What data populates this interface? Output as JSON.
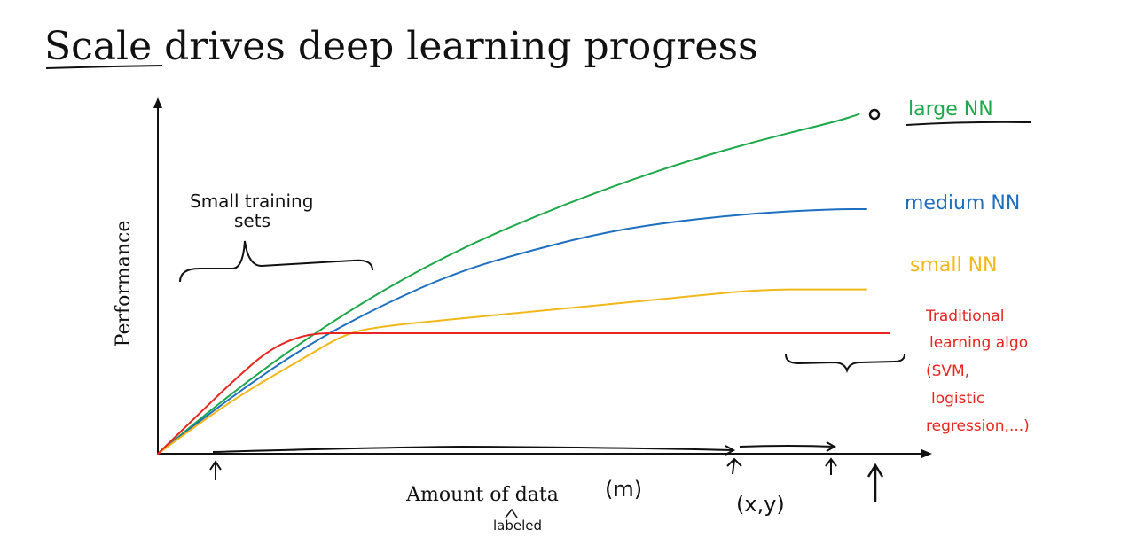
{
  "slide": {
    "title_underlined": "Scale",
    "title_rest": " drives deep learning progress"
  },
  "colors": {
    "large": "#1ea84a",
    "medium": "#1f6fc0",
    "small": "#f2b718",
    "traditional": "#e8251f",
    "ink": "#111111"
  },
  "chart_data": {
    "type": "line",
    "xlabel": "Amount of data",
    "ylabel": "Performance",
    "series": [
      {
        "name": "large NN",
        "color_key": "large",
        "x": [
          0,
          0.1,
          0.2,
          0.3,
          0.4,
          0.5,
          0.6,
          0.7,
          0.8,
          0.9,
          0.93
        ],
        "y": [
          0,
          0.17,
          0.32,
          0.45,
          0.56,
          0.65,
          0.73,
          0.8,
          0.86,
          0.91,
          0.93
        ]
      },
      {
        "name": "medium NN",
        "color_key": "medium",
        "x": [
          0,
          0.1,
          0.2,
          0.3,
          0.4,
          0.5,
          0.6,
          0.7,
          0.8,
          0.9,
          0.94
        ],
        "y": [
          0,
          0.16,
          0.3,
          0.41,
          0.5,
          0.56,
          0.61,
          0.64,
          0.66,
          0.67,
          0.67
        ]
      },
      {
        "name": "small NN",
        "color_key": "small",
        "x": [
          0,
          0.1,
          0.2,
          0.25,
          0.3,
          0.4,
          0.5,
          0.6,
          0.7,
          0.8,
          0.9,
          0.94
        ],
        "y": [
          0,
          0.15,
          0.27,
          0.33,
          0.35,
          0.37,
          0.39,
          0.41,
          0.43,
          0.45,
          0.45,
          0.45
        ]
      },
      {
        "name": "Traditional learning algo (SVM, logistic regression,...)",
        "color_key": "traditional",
        "x": [
          0,
          0.05,
          0.1,
          0.15,
          0.2,
          0.25,
          0.35,
          0.5,
          0.7,
          0.85,
          0.97
        ],
        "y": [
          0,
          0.1,
          0.2,
          0.29,
          0.33,
          0.33,
          0.33,
          0.33,
          0.33,
          0.33,
          0.33
        ]
      }
    ]
  },
  "annotations": {
    "small_training_sets": [
      "Small training",
      "sets"
    ],
    "large_nn": "large NN",
    "medium_nn": "medium NN",
    "small_nn": "small NN",
    "traditional": [
      "Traditional",
      "learning algo",
      "(SVM,",
      "logistic",
      "regression,...)"
    ],
    "m": "(m)",
    "labeled": "labeled",
    "xy": "(x,y)"
  }
}
